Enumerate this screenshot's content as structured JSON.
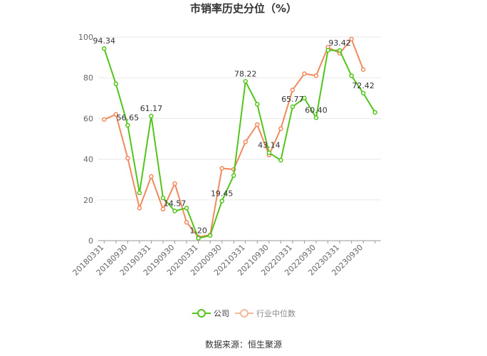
{
  "chart_data": {
    "type": "line",
    "title": "市销率历史分位（%）",
    "ylim": [
      0,
      100
    ],
    "yticks": [
      0,
      20,
      40,
      60,
      80,
      100
    ],
    "x": [
      "20180331",
      "20180630",
      "20180930",
      "20181231",
      "20190331",
      "20190630",
      "20190930",
      "20191231",
      "20200331",
      "20200630",
      "20200930",
      "20201231",
      "20210331",
      "20210630",
      "20210930",
      "20211231",
      "20220331",
      "20220630",
      "20220930",
      "20221231",
      "20230331",
      "20230630",
      "20230930",
      "20231231"
    ],
    "xtick_labels": [
      "20180331",
      "20180930",
      "20190331",
      "20190930",
      "20200331",
      "20200930",
      "20210331",
      "20210930",
      "20220331",
      "20220930",
      "20230331",
      "20230930"
    ],
    "series": [
      {
        "name": "公司",
        "color": "#52c41a",
        "values": [
          94.34,
          77.0,
          56.65,
          23.5,
          61.17,
          21.0,
          14.57,
          16.0,
          1.2,
          2.5,
          19.45,
          32.0,
          78.22,
          67.0,
          43.14,
          39.5,
          65.77,
          70.0,
          60.4,
          93.5,
          93.42,
          81.0,
          72.42,
          63.0
        ]
      },
      {
        "name": "行业中位数",
        "color": "#f08a5d",
        "values": [
          59.5,
          62.0,
          40.5,
          16.0,
          31.5,
          15.5,
          28.0,
          9.0,
          1.8,
          2.8,
          35.5,
          35.0,
          48.5,
          57.0,
          42.0,
          55.0,
          74.0,
          82.0,
          81.0,
          95.0,
          92.0,
          99.0,
          84.0,
          null
        ]
      }
    ],
    "data_labels": [
      {
        "series": 0,
        "index": 0,
        "text": "94.34"
      },
      {
        "series": 0,
        "index": 2,
        "text": "56.65"
      },
      {
        "series": 0,
        "index": 4,
        "text": "61.17"
      },
      {
        "series": 0,
        "index": 6,
        "text": "14.57"
      },
      {
        "series": 0,
        "index": 8,
        "text": "1.20"
      },
      {
        "series": 0,
        "index": 10,
        "text": "19.45"
      },
      {
        "series": 0,
        "index": 12,
        "text": "78.22"
      },
      {
        "series": 0,
        "index": 14,
        "text": "43.14"
      },
      {
        "series": 0,
        "index": 16,
        "text": "65.77"
      },
      {
        "series": 0,
        "index": 18,
        "text": "60.40"
      },
      {
        "series": 0,
        "index": 20,
        "text": "93.42"
      },
      {
        "series": 0,
        "index": 22,
        "text": "72.42"
      }
    ],
    "grid": true,
    "legend_position": "bottom"
  },
  "source": "数据来源：恒生聚源"
}
